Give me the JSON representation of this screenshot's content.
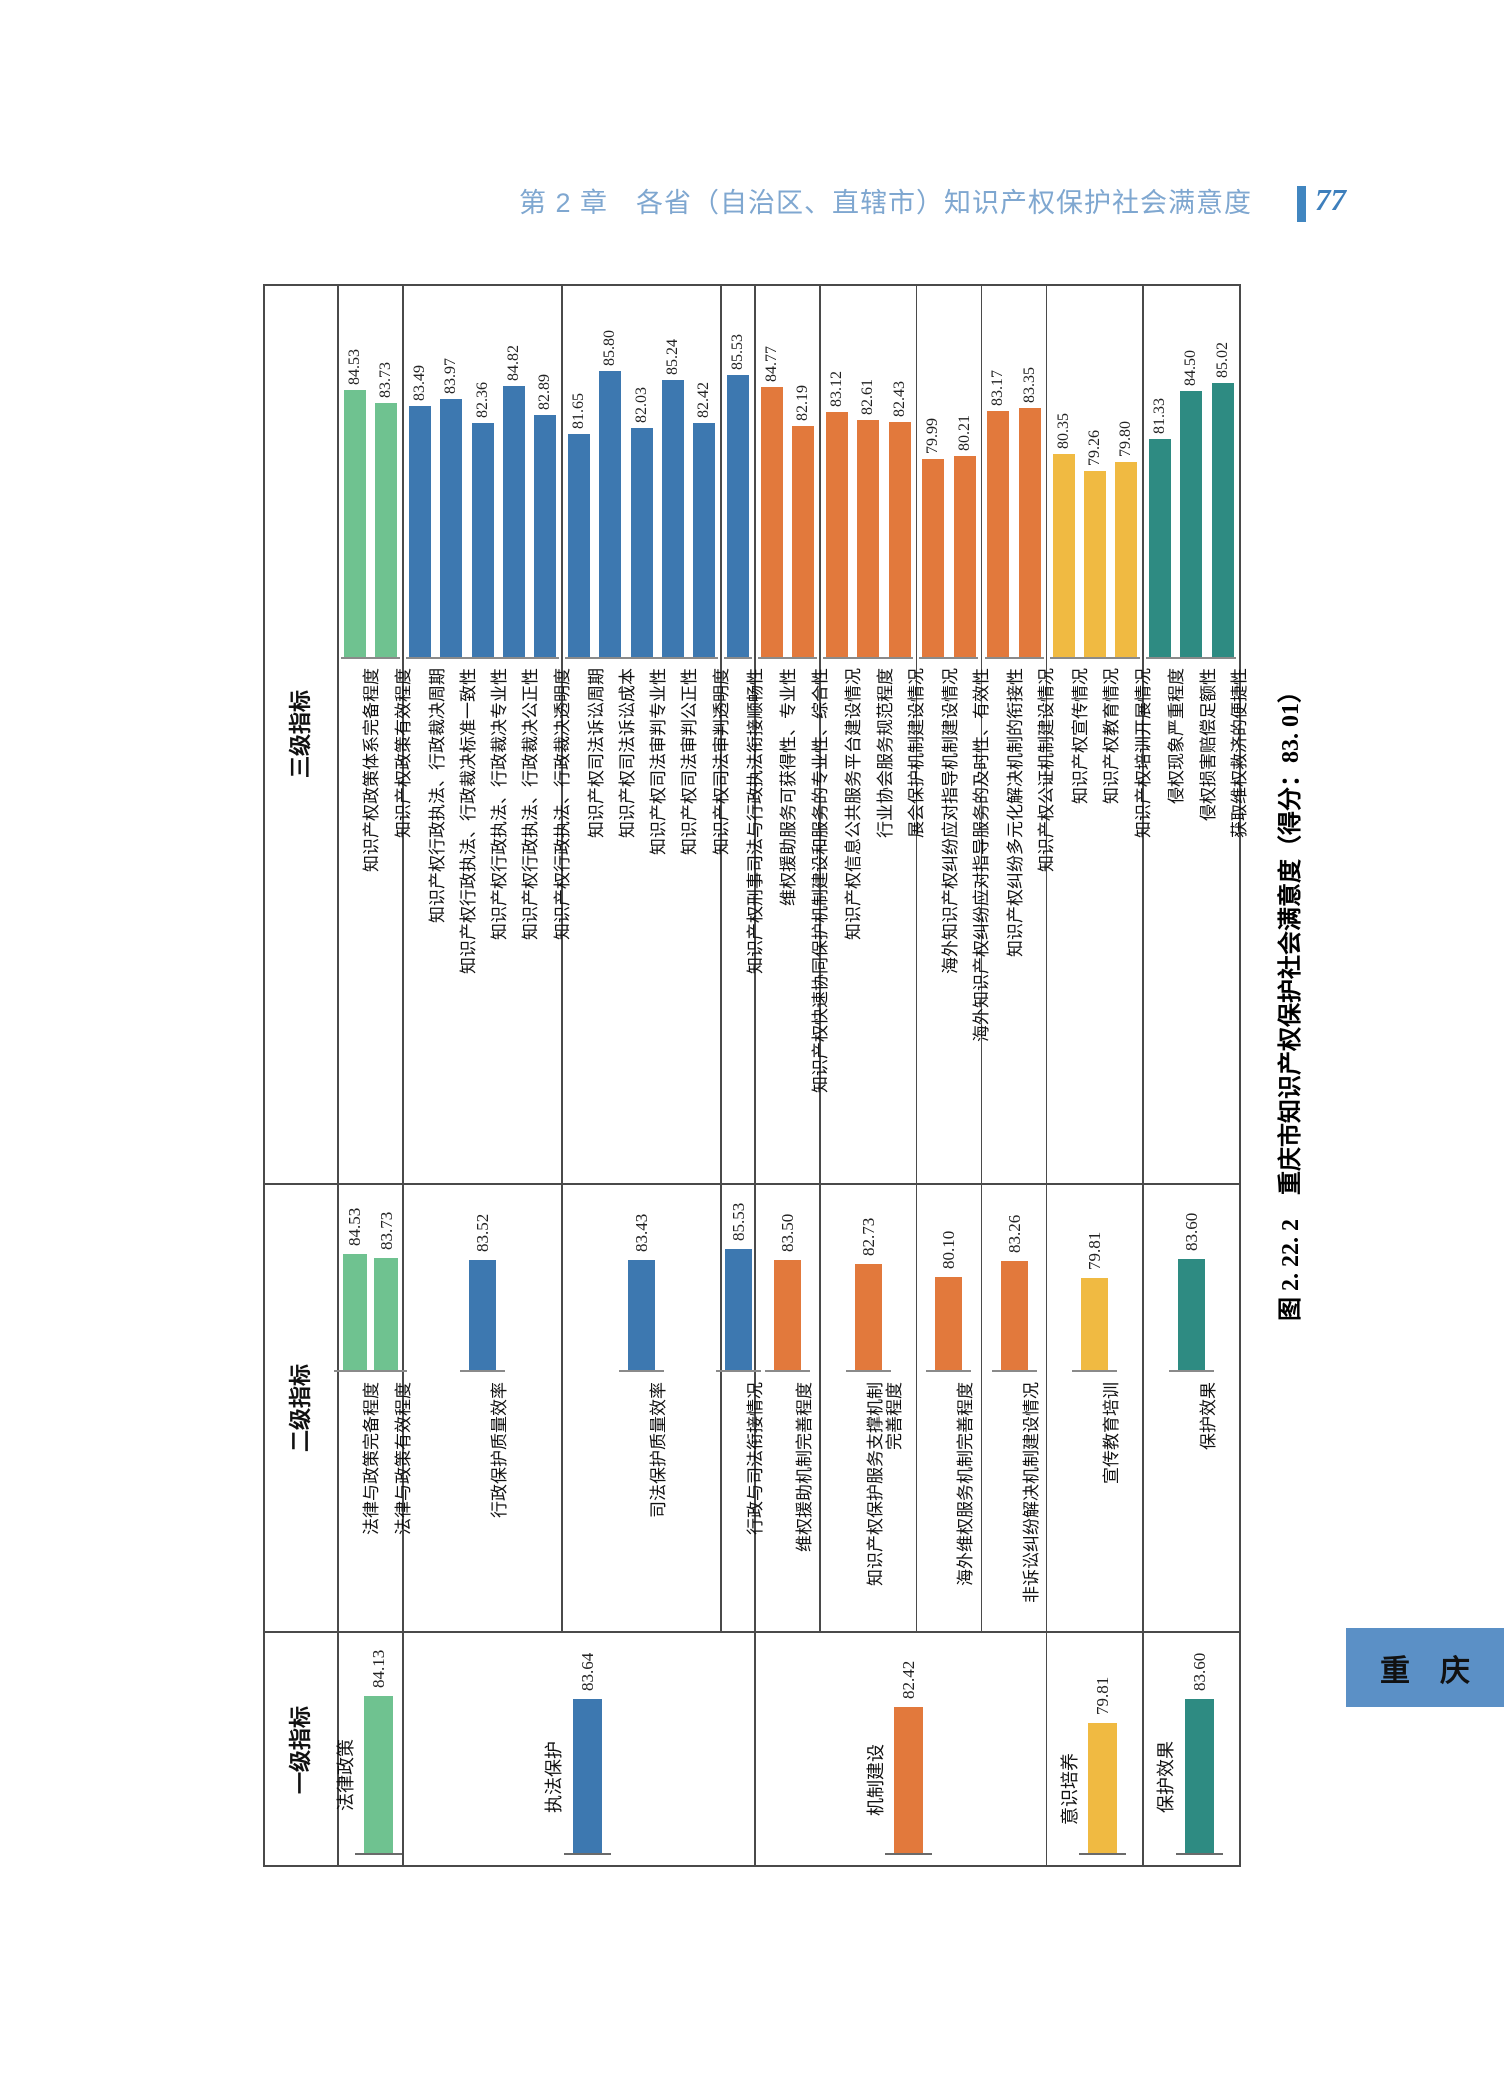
{
  "header": {
    "chapter_title": "第 2 章　各省（自治区、直辖市）知识产权保护社会满意度",
    "page_number": "77",
    "title_color": "#7fa7d0",
    "accent_color": "#4186c0",
    "page_number_color": "#3e7fbc"
  },
  "caption": "图 2. 22. 2　重庆市知识产权保护社会满意度（得分：83. 01）",
  "province_tab": {
    "label": "重　庆",
    "bg": "#5b90c6",
    "text_color": "#111111"
  },
  "colors": {
    "green": "#6fc290",
    "blue": "#3d78b0",
    "orange": "#e2793c",
    "yellow": "#f0ba42",
    "teal": "#2e8b82",
    "frame": "#4a4a4a",
    "baseline": "#8a8a8a",
    "value_text": "#222222",
    "label_text": "#111111"
  },
  "chart_data": {
    "type": "bar",
    "note": "landscape horizontal-bar figure rotated 90deg counter-clockwise on the page; bars grow upward in page space, all text reads bottom-to-top",
    "title": "重庆市知识产权保护社会满意度",
    "score": "83.01",
    "axis_min_hint": [
      66.93,
      61.66,
      59.32
    ],
    "cells": [
      [
        1,
        2
      ],
      [
        3,
        7
      ],
      [
        8,
        12
      ],
      [
        13,
        13
      ],
      [
        14,
        15
      ],
      [
        16,
        18
      ],
      [
        19,
        20
      ],
      [
        21,
        22
      ],
      [
        23,
        25
      ],
      [
        26,
        28
      ]
    ],
    "level3": {
      "title": "三级指标",
      "items": [
        {
          "label": "知识产权政策体系完备程度",
          "value": "84.53",
          "color": "green"
        },
        {
          "label": "知识产权政策有效程度",
          "value": "83.73",
          "color": "green"
        },
        {
          "label": "知识产权行政执法、行政裁决周期",
          "value": "83.49",
          "color": "blue"
        },
        {
          "label": "知识产权行政执法、行政裁决标准一致性",
          "value": "83.97",
          "color": "blue"
        },
        {
          "label": "知识产权行政执法、行政裁决专业性",
          "value": "82.36",
          "color": "blue"
        },
        {
          "label": "知识产权行政执法、行政裁决公正性",
          "value": "84.82",
          "color": "blue"
        },
        {
          "label": "知识产权行政执法、行政裁决透明度",
          "value": "82.89",
          "color": "blue"
        },
        {
          "label": "知识产权司法诉讼周期",
          "value": "81.65",
          "color": "blue"
        },
        {
          "label": "知识产权司法诉讼成本",
          "value": "85.80",
          "color": "blue"
        },
        {
          "label": "知识产权司法审判专业性",
          "value": "82.03",
          "color": "blue"
        },
        {
          "label": "知识产权司法审判公正性",
          "value": "85.24",
          "color": "blue"
        },
        {
          "label": "知识产权司法审判透明度",
          "value": "82.42",
          "color": "blue"
        },
        {
          "label": "知识产权刑事司法与行政执法衔接顺畅性",
          "value": "85.53",
          "color": "blue"
        },
        {
          "label": "维权援助服务可获得性、专业性",
          "value": "84.77",
          "color": "orange"
        },
        {
          "label": "知识产权快速协同保护机制建设和服务的专业性、综合性",
          "value": "82.19",
          "color": "orange"
        },
        {
          "label": "知识产权信息公共服务平台建设情况",
          "value": "83.12",
          "color": "orange"
        },
        {
          "label": "行业协会服务规范程度",
          "value": "82.61",
          "color": "orange"
        },
        {
          "label": "展会保护机制建设情况",
          "value": "82.43",
          "color": "orange"
        },
        {
          "label": "海外知识产权纠纷应对指导机制建设情况",
          "value": "79.99",
          "color": "orange"
        },
        {
          "label": "海外知识产权纠纷应对指导服务的及时性、有效性",
          "value": "80.21",
          "color": "orange"
        },
        {
          "label": "知识产权纠纷多元化解决机制的衔接性",
          "value": "83.17",
          "color": "orange"
        },
        {
          "label": "知识产权公证机制建设情况",
          "value": "83.35",
          "color": "orange"
        },
        {
          "label": "知识产权宣传情况",
          "value": "80.35",
          "color": "yellow"
        },
        {
          "label": "知识产权教育情况",
          "value": "79.26",
          "color": "yellow"
        },
        {
          "label": "知识产权培训开展情况",
          "value": "79.80",
          "color": "yellow"
        },
        {
          "label": "侵权现象严重程度",
          "value": "81.33",
          "color": "teal"
        },
        {
          "label": "侵权损害赔偿足额性",
          "value": "84.50",
          "color": "teal"
        },
        {
          "label": "获取维权救济的便捷性",
          "value": "85.02",
          "color": "teal"
        }
      ]
    },
    "level2": {
      "title": "二级指标",
      "items": [
        {
          "label": "法律与政策完备程度",
          "value": "84.53",
          "color": "green",
          "span": [
            1,
            1
          ]
        },
        {
          "label": "法律与政策有效程度",
          "value": "83.73",
          "color": "green",
          "span": [
            2,
            2
          ]
        },
        {
          "label": "行政保护质量效率",
          "value": "83.52",
          "color": "blue",
          "span": [
            3,
            7
          ]
        },
        {
          "label": "司法保护质量效率",
          "value": "83.43",
          "color": "blue",
          "span": [
            8,
            12
          ]
        },
        {
          "label": "行政与司法衔接情况",
          "value": "85.53",
          "color": "blue",
          "span": [
            13,
            13
          ]
        },
        {
          "label": "维权援助机制完善程度",
          "value": "83.50",
          "color": "orange",
          "span": [
            14,
            15
          ]
        },
        {
          "label": "知识产权保护服务支撑机制",
          "label_line2": "完善程度",
          "value": "82.73",
          "color": "orange",
          "span": [
            16,
            18
          ]
        },
        {
          "label": "海外维权服务机制完善程度",
          "value": "80.10",
          "color": "orange",
          "span": [
            19,
            20
          ]
        },
        {
          "label": "非诉讼纠纷解决机制建设情况",
          "value": "83.26",
          "color": "orange",
          "span": [
            21,
            22
          ]
        },
        {
          "label": "宣传教育培训",
          "value": "79.81",
          "color": "yellow",
          "span": [
            23,
            25
          ]
        },
        {
          "label": "保护效果",
          "value": "83.60",
          "color": "teal",
          "span": [
            26,
            28
          ]
        }
      ]
    },
    "level1": {
      "title": "一级指标",
      "items": [
        {
          "label": "法律政策",
          "value": "84.13",
          "color": "green",
          "span": [
            1,
            2
          ]
        },
        {
          "label": "执法保护",
          "value": "83.64",
          "color": "blue",
          "span": [
            3,
            13
          ]
        },
        {
          "label": "机制建设",
          "value": "82.42",
          "color": "orange",
          "span": [
            14,
            22
          ]
        },
        {
          "label": "意识培养",
          "value": "79.81",
          "color": "yellow",
          "span": [
            23,
            25
          ]
        },
        {
          "label": "保护效果",
          "value": "83.60",
          "color": "teal",
          "span": [
            26,
            28
          ]
        }
      ]
    }
  }
}
